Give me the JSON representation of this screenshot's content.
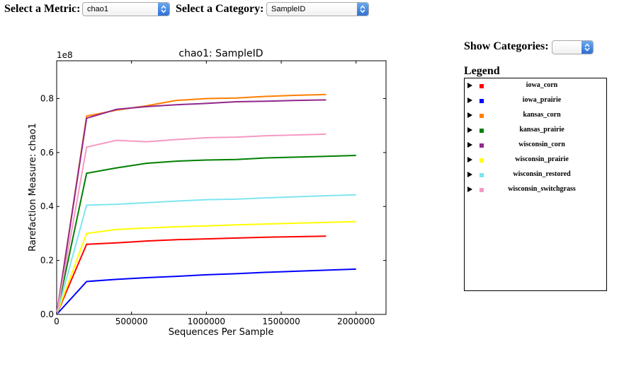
{
  "controls": {
    "metric_label": "Select a Metric:",
    "metric_value": "chao1",
    "category_label": "Select a Category:",
    "category_value": "SampleID",
    "show_categories_label": "Show Categories:",
    "show_categories_value": ""
  },
  "legend": {
    "title": "Legend",
    "items": [
      {
        "label": "iowa_corn",
        "color": "#ff0000"
      },
      {
        "label": "iowa_prairie",
        "color": "#0000ff"
      },
      {
        "label": "kansas_corn",
        "color": "#ff7f00"
      },
      {
        "label": "kansas_prairie",
        "color": "#008000"
      },
      {
        "label": "wisconsin_corn",
        "color": "#91278d"
      },
      {
        "label": "wisconsin_prairie",
        "color": "#ffff00"
      },
      {
        "label": "wisconsin_restored",
        "color": "#7fe5f0"
      },
      {
        "label": "wisconsin_switchgrass",
        "color": "#f49ac2"
      }
    ]
  },
  "chart_data": {
    "type": "line",
    "title": "chao1: SampleID",
    "xlabel": "Sequences Per Sample",
    "ylabel": "Rarefaction Measure: chao1",
    "y_scale_label": "1e8",
    "xlim": [
      0,
      2200000
    ],
    "ylim": [
      0,
      0.94
    ],
    "xticks": [
      0,
      500000,
      1000000,
      1500000,
      2000000
    ],
    "xtick_labels": [
      "0",
      "500000",
      "1000000",
      "1500000",
      "2000000"
    ],
    "yticks": [
      0.0,
      0.2,
      0.4,
      0.6,
      0.8
    ],
    "ytick_labels": [
      "0.0",
      "0.2",
      "0.4",
      "0.6",
      "0.8"
    ],
    "grid": false,
    "series": [
      {
        "name": "iowa_corn",
        "color": "#ff0000",
        "x": [
          0,
          200000,
          400000,
          600000,
          800000,
          1000000,
          1200000,
          1400000,
          1600000,
          1800000
        ],
        "y": [
          0.0,
          0.26,
          0.265,
          0.272,
          0.277,
          0.28,
          0.283,
          0.286,
          0.288,
          0.29
        ]
      },
      {
        "name": "iowa_prairie",
        "color": "#0000ff",
        "x": [
          0,
          200000,
          400000,
          600000,
          800000,
          1000000,
          1200000,
          1400000,
          1600000,
          1800000,
          2000000
        ],
        "y": [
          0.0,
          0.122,
          0.13,
          0.136,
          0.141,
          0.147,
          0.151,
          0.156,
          0.16,
          0.164,
          0.168
        ]
      },
      {
        "name": "kansas_corn",
        "color": "#ff7f00",
        "x": [
          0,
          200000,
          400000,
          600000,
          800000,
          1000000,
          1200000,
          1400000,
          1600000,
          1800000
        ],
        "y": [
          0.0,
          0.735,
          0.757,
          0.773,
          0.793,
          0.8,
          0.802,
          0.808,
          0.812,
          0.815
        ]
      },
      {
        "name": "kansas_prairie",
        "color": "#008000",
        "x": [
          0,
          200000,
          400000,
          600000,
          800000,
          1000000,
          1200000,
          1400000,
          1600000,
          1800000,
          2000000
        ],
        "y": [
          0.0,
          0.523,
          0.543,
          0.56,
          0.568,
          0.572,
          0.574,
          0.58,
          0.583,
          0.586,
          0.589
        ]
      },
      {
        "name": "wisconsin_corn",
        "color": "#91278d",
        "x": [
          0,
          200000,
          400000,
          600000,
          800000,
          1000000,
          1200000,
          1400000,
          1600000,
          1800000
        ],
        "y": [
          0.0,
          0.727,
          0.76,
          0.77,
          0.777,
          0.782,
          0.788,
          0.79,
          0.793,
          0.795
        ]
      },
      {
        "name": "wisconsin_prairie",
        "color": "#ffff00",
        "x": [
          0,
          200000,
          400000,
          600000,
          800000,
          1000000,
          1200000,
          1400000,
          1600000,
          1800000,
          2000000
        ],
        "y": [
          0.0,
          0.3,
          0.315,
          0.32,
          0.325,
          0.328,
          0.332,
          0.335,
          0.338,
          0.341,
          0.344
        ]
      },
      {
        "name": "wisconsin_restored",
        "color": "#7fe5f0",
        "x": [
          0,
          200000,
          400000,
          600000,
          800000,
          1000000,
          1200000,
          1400000,
          1600000,
          1800000,
          2000000
        ],
        "y": [
          0.0,
          0.405,
          0.408,
          0.414,
          0.42,
          0.425,
          0.427,
          0.432,
          0.436,
          0.44,
          0.443
        ]
      },
      {
        "name": "wisconsin_switchgrass",
        "color": "#f49ac2",
        "x": [
          0,
          200000,
          400000,
          600000,
          800000,
          1000000,
          1200000,
          1400000,
          1600000,
          1800000
        ],
        "y": [
          0.0,
          0.62,
          0.645,
          0.64,
          0.648,
          0.655,
          0.657,
          0.662,
          0.665,
          0.668
        ]
      }
    ]
  }
}
